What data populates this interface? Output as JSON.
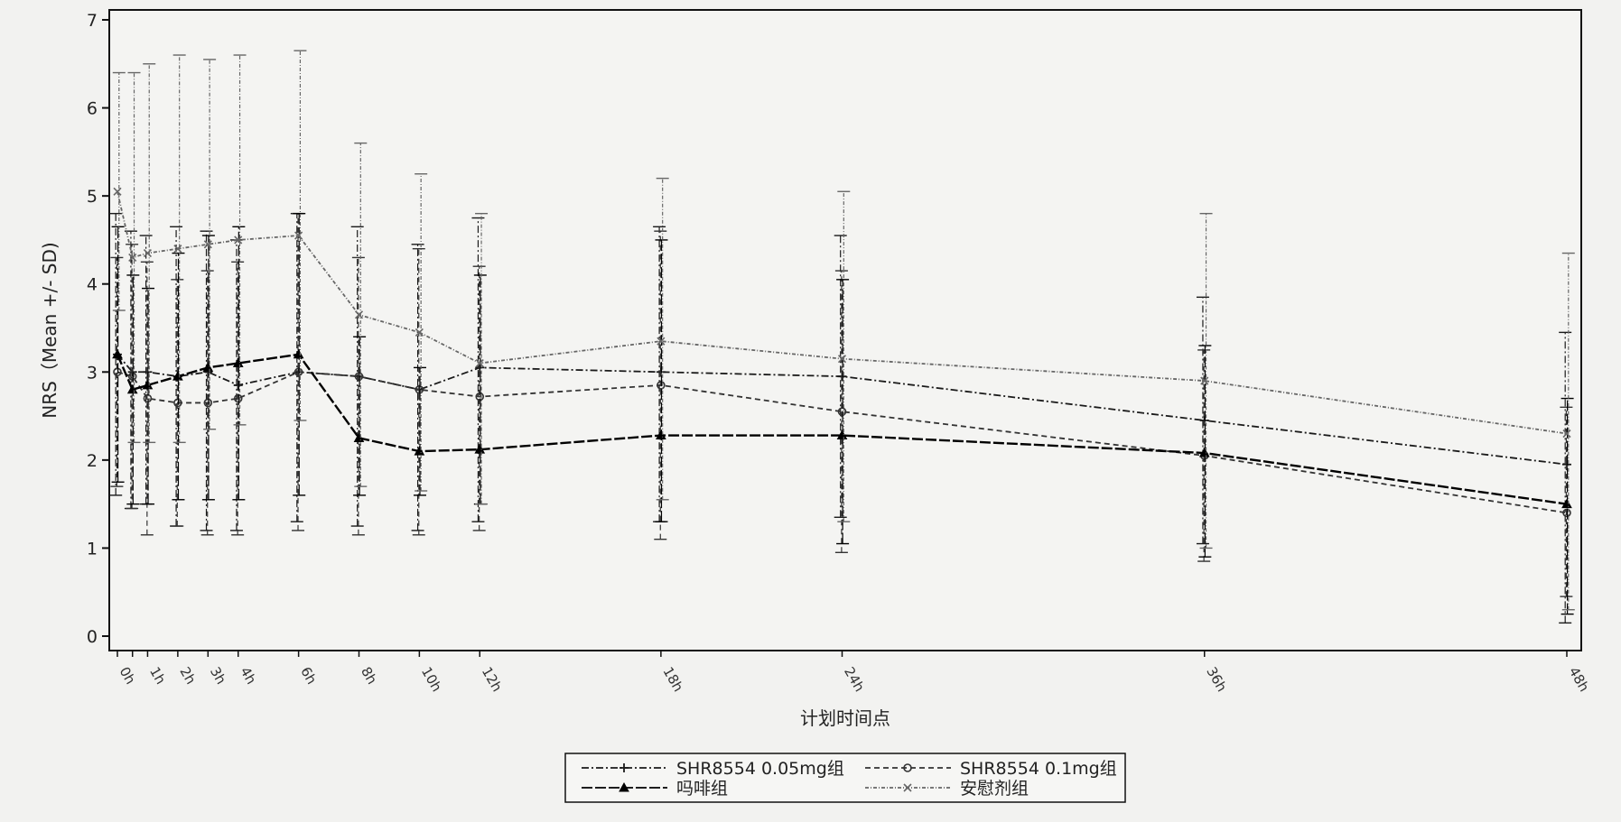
{
  "chart_data": {
    "type": "line",
    "title": "",
    "xlabel": "计划时间点",
    "ylabel": "NRS（Mean +/- SD)",
    "ylim": [
      0,
      7
    ],
    "yticks": [
      0,
      1,
      2,
      3,
      4,
      5,
      6,
      7
    ],
    "grid": false,
    "legend_position": "bottom",
    "x_tick_labels": [
      "0h",
      "1h",
      "2h",
      "3h",
      "4h",
      "6h",
      "8h",
      "10h",
      "12h",
      "18h",
      "24h",
      "36h",
      "48h"
    ],
    "x": [
      0,
      0.5,
      1,
      2,
      3,
      4,
      6,
      8,
      10,
      12,
      18,
      24,
      36,
      48
    ],
    "series": [
      {
        "name": "SHR8554 0.05mg组",
        "color": "#1a1a1a",
        "dash": "8 3 2 3",
        "marker": "plus",
        "values": [
          3.2,
          3.0,
          3.0,
          2.95,
          3.0,
          2.85,
          3.0,
          2.95,
          2.8,
          3.05,
          3.0,
          2.95,
          2.45,
          1.95
        ],
        "sd_lower": [
          1.6,
          1.45,
          1.5,
          1.25,
          1.2,
          1.2,
          1.3,
          1.25,
          1.2,
          1.3,
          1.3,
          1.35,
          1.05,
          0.15
        ],
        "sd_upper": [
          4.8,
          4.6,
          4.55,
          4.65,
          4.6,
          4.5,
          4.8,
          4.65,
          4.45,
          4.75,
          4.65,
          4.55,
          3.85,
          3.45
        ]
      },
      {
        "name": "SHR8554 0.1mg组",
        "color": "#333333",
        "dash": "6 4",
        "marker": "circle",
        "values": [
          3.0,
          2.95,
          2.7,
          2.65,
          2.65,
          2.7,
          3.0,
          2.95,
          2.8,
          2.72,
          2.85,
          2.55,
          2.05,
          1.4
        ],
        "sd_lower": [
          1.7,
          1.45,
          1.15,
          1.25,
          1.15,
          1.15,
          1.2,
          1.15,
          1.15,
          1.2,
          1.1,
          0.95,
          0.85,
          0.45
        ],
        "sd_upper": [
          4.3,
          4.45,
          4.25,
          4.05,
          4.15,
          4.25,
          4.8,
          4.3,
          4.4,
          4.2,
          4.6,
          4.15,
          3.25,
          2.6
        ]
      },
      {
        "name": "吗啡组",
        "color": "#000000",
        "dash": "12 3",
        "marker": "triangle",
        "values": [
          3.2,
          2.8,
          2.85,
          2.95,
          3.05,
          3.1,
          3.2,
          2.25,
          2.1,
          2.12,
          2.28,
          2.28,
          2.08,
          1.5
        ],
        "sd_lower": [
          1.75,
          1.5,
          1.5,
          1.55,
          1.55,
          1.55,
          1.6,
          1.6,
          1.6,
          1.5,
          1.3,
          1.05,
          0.9,
          0.25
        ],
        "sd_upper": [
          4.65,
          4.1,
          3.95,
          4.35,
          4.55,
          4.65,
          4.8,
          3.4,
          3.05,
          4.1,
          4.5,
          4.05,
          3.3,
          2.7
        ]
      },
      {
        "name": "安慰剂组",
        "color": "#666666",
        "dash": "4 2 1 2",
        "marker": "cross",
        "values": [
          5.05,
          4.3,
          4.35,
          4.4,
          4.45,
          4.5,
          4.55,
          3.65,
          3.45,
          3.1,
          3.35,
          3.15,
          2.9,
          2.3
        ],
        "sd_lower": [
          3.7,
          2.2,
          2.2,
          2.2,
          2.35,
          2.4,
          2.45,
          1.7,
          1.65,
          1.5,
          1.55,
          1.3,
          1.0,
          0.3
        ],
        "sd_upper": [
          6.4,
          6.4,
          6.5,
          6.6,
          6.55,
          6.6,
          6.65,
          5.6,
          5.25,
          4.8,
          5.2,
          5.05,
          4.8,
          4.35
        ]
      }
    ]
  }
}
